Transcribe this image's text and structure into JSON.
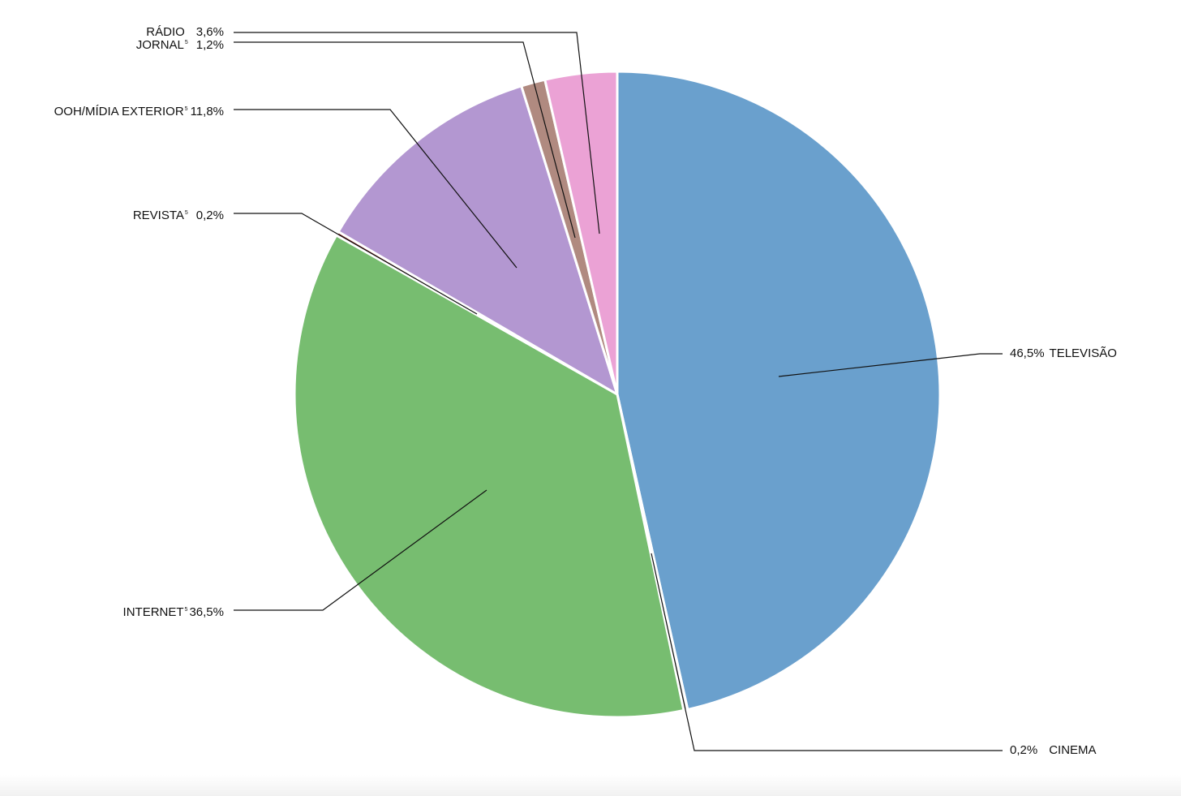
{
  "chart_data": {
    "type": "pie",
    "slices": [
      {
        "name": "TELEVISÃO",
        "value": 46.5,
        "label_value": "46,5%",
        "color": "#6aa0cd"
      },
      {
        "name": "CINEMA",
        "value": 0.2,
        "label_value": "0,2%",
        "color": "#c9c9c9"
      },
      {
        "name": "INTERNET",
        "sup": "5",
        "value": 36.5,
        "label_value": "36,5%",
        "color": "#77bd70"
      },
      {
        "name": "REVISTA",
        "sup": "5",
        "value": 0.2,
        "label_value": "0,2%",
        "color": "#8c2a2a"
      },
      {
        "name": "OOH/MÍDIA EXTERIOR",
        "sup": "5",
        "value": 11.8,
        "label_value": "11,8%",
        "color": "#b397d1"
      },
      {
        "name": "JORNAL",
        "sup": "5",
        "value": 1.2,
        "label_value": "1,2%",
        "color": "#b08a80"
      },
      {
        "name": "RÁDIO",
        "value": 3.6,
        "label_value": "3,6%",
        "color": "#eba2d5"
      }
    ],
    "start_angle_deg": 0,
    "direction": "clockwise"
  }
}
